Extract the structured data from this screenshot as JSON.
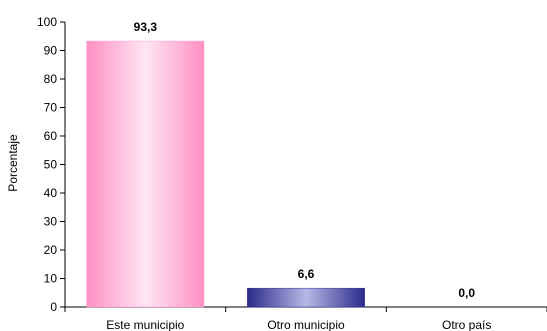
{
  "chart_data": {
    "type": "bar",
    "categories": [
      "Este municipio",
      "Otro  municipio",
      "Otro país"
    ],
    "values": [
      93.3,
      6.6,
      0.0
    ],
    "value_labels": [
      "93,3",
      "6,6",
      "0,0"
    ],
    "ylabel": "Porcentaje",
    "ylim": [
      0,
      100
    ],
    "yticks": [
      0,
      10,
      20,
      30,
      40,
      50,
      60,
      70,
      80,
      90,
      100
    ],
    "grid": false,
    "legend": "none",
    "colors": [
      "#ff99cc",
      "#333399",
      "#c0c0c0"
    ]
  }
}
